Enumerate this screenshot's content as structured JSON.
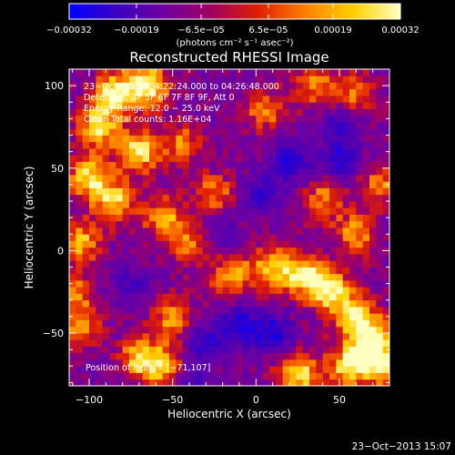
{
  "chart_data": {
    "type": "heatmap",
    "title": "Reconstructed RHESSI Image",
    "xlabel": "Heliocentric X (arcsec)",
    "ylabel": "Heliocentric Y (arcsec)",
    "xlim": [
      -112,
      80
    ],
    "ylim": [
      -82,
      110
    ],
    "xticks": [
      -100,
      -50,
      0,
      50
    ],
    "yticks": [
      -50,
      0,
      50,
      100
    ],
    "x_tick_labels": [
      "−100",
      "−50",
      "0",
      "50"
    ],
    "y_tick_labels": [
      "−50",
      "0",
      "50",
      "100"
    ],
    "colorbar": {
      "range": [
        -0.00032,
        0.00032
      ],
      "tick_labels": [
        "−0.00032",
        "−0.00019",
        "−6.5e−05",
        "6.5e−05",
        "0.00019",
        "0.00032"
      ],
      "ticks": [
        -0.00032,
        -0.00019,
        -6.5e-05,
        6.5e-05,
        0.00019,
        0.00032
      ],
      "unit_label": "(photons cm⁻² s⁻¹ asec⁻²)",
      "colormap": [
        "#0000ff",
        "#3a00c0",
        "#7000a0",
        "#a00060",
        "#e02000",
        "#ff8000",
        "#ffd000",
        "#ffffc0"
      ]
    },
    "info_lines": [
      "23−Oct−2013 04:22:24.000 to 04:26:48.000",
      "Detectors: 3F 5F 6F 7F 8F 9F, Att 0",
      "Energy Range: 12.0 − 25.0 keV",
      "Clean    Total counts: 1.16E+04"
    ],
    "peak_label": "Position of Peak = [−71,107]",
    "peak_position": [
      -71,
      107
    ],
    "hot_regions": [
      {
        "x": -85,
        "y": 95,
        "level": 0.95
      },
      {
        "x": -65,
        "y": 100,
        "level": 1.0
      },
      {
        "x": -95,
        "y": 75,
        "level": 0.85
      },
      {
        "x": -70,
        "y": 60,
        "level": 0.9
      },
      {
        "x": -100,
        "y": 45,
        "level": 0.85
      },
      {
        "x": -85,
        "y": 30,
        "level": 0.8
      },
      {
        "x": -55,
        "y": 20,
        "level": 0.7
      },
      {
        "x": -25,
        "y": 35,
        "level": 0.55
      },
      {
        "x": -105,
        "y": 5,
        "level": 0.75
      },
      {
        "x": -45,
        "y": 65,
        "level": 0.55
      },
      {
        "x": 5,
        "y": 85,
        "level": 0.55
      },
      {
        "x": 35,
        "y": 100,
        "level": 0.6
      },
      {
        "x": 60,
        "y": 95,
        "level": 0.55
      },
      {
        "x": -15,
        "y": -15,
        "level": 0.7
      },
      {
        "x": 10,
        "y": -10,
        "level": 0.8
      },
      {
        "x": 30,
        "y": -15,
        "level": 0.9
      },
      {
        "x": 45,
        "y": -25,
        "level": 0.85
      },
      {
        "x": 60,
        "y": -40,
        "level": 0.9
      },
      {
        "x": 70,
        "y": -55,
        "level": 0.85
      },
      {
        "x": 75,
        "y": -70,
        "level": 0.8
      },
      {
        "x": 55,
        "y": -70,
        "level": 0.85
      },
      {
        "x": 25,
        "y": -75,
        "level": 0.9
      },
      {
        "x": 40,
        "y": 30,
        "level": 0.6
      },
      {
        "x": 60,
        "y": 10,
        "level": 0.65
      },
      {
        "x": -105,
        "y": -45,
        "level": 0.6
      },
      {
        "x": -110,
        "y": -25,
        "level": 0.55
      },
      {
        "x": -50,
        "y": -40,
        "level": 0.65
      },
      {
        "x": -70,
        "y": -65,
        "level": 0.75
      },
      {
        "x": -55,
        "y": -70,
        "level": 0.7
      },
      {
        "x": -40,
        "y": 5,
        "level": 0.5
      },
      {
        "x": 75,
        "y": 40,
        "level": 0.55
      }
    ],
    "cold_regions": [
      {
        "x": 20,
        "y": 55,
        "level": 0.9
      },
      {
        "x": 50,
        "y": 55,
        "level": 0.8
      },
      {
        "x": 5,
        "y": 35,
        "level": 0.7
      },
      {
        "x": 50,
        "y": 75,
        "level": 0.6
      },
      {
        "x": -10,
        "y": -45,
        "level": 0.9
      },
      {
        "x": 10,
        "y": -50,
        "level": 0.9
      },
      {
        "x": -30,
        "y": -55,
        "level": 0.7
      },
      {
        "x": -40,
        "y": -80,
        "level": 0.6
      },
      {
        "x": -75,
        "y": -20,
        "level": 0.5
      },
      {
        "x": -20,
        "y": 10,
        "level": 0.45
      }
    ]
  },
  "footer": {
    "timestamp": "23−Oct−2013 15:07"
  }
}
